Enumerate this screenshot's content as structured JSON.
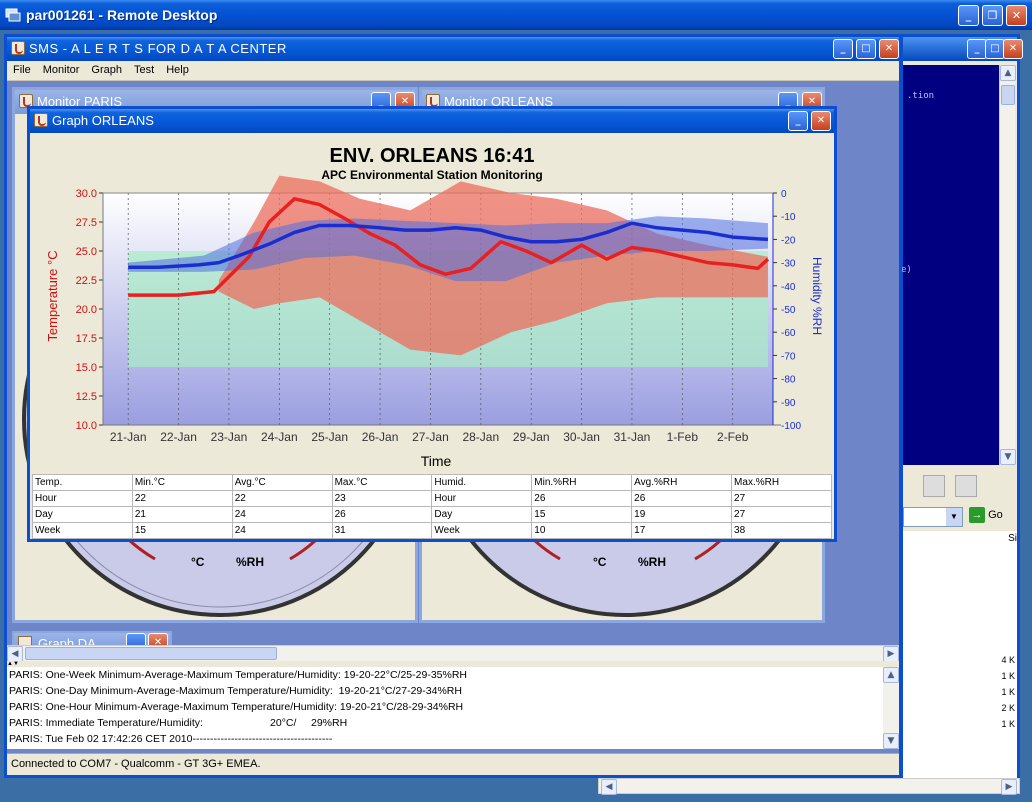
{
  "remote_title": "par001261 - Remote Desktop",
  "app": {
    "title": "SMS - A L E R T S  FOR  D A T A CENTER",
    "menu": [
      "File",
      "Monitor",
      "Graph",
      "Test",
      "Help"
    ]
  },
  "windows": {
    "monitor_paris": "Monitor PARIS",
    "monitor_orleans": "Monitor ORLEANS",
    "graph_da": "Graph DA",
    "graph_orleans": "Graph ORLEANS"
  },
  "gauges": {
    "left": {
      "scale_min": "-5.0",
      "scale_max": "45.0",
      "unit_c": "°C",
      "unit_rh": "%RH"
    },
    "right": {
      "scale_min": "-5.0",
      "scale_max": "45.0",
      "unit_c": "°C",
      "unit_rh": "%RH"
    }
  },
  "chart_data": {
    "type": "line",
    "title": "ENV. ORLEANS 16:41",
    "subtitle": "APC Environmental Station Monitoring",
    "xlabel": "Time",
    "ylabel": "Temperature °C",
    "y2label": "Humidity %RH",
    "categories": [
      "21-Jan",
      "22-Jan",
      "23-Jan",
      "24-Jan",
      "25-Jan",
      "26-Jan",
      "27-Jan",
      "28-Jan",
      "29-Jan",
      "30-Jan",
      "31-Jan",
      "1-Feb",
      "2-Feb"
    ],
    "y_ticks": [
      "30.0",
      "27.5",
      "25.0",
      "22.5",
      "20.0",
      "17.5",
      "15.0",
      "12.5",
      "10.0"
    ],
    "y2_ticks": [
      "0",
      "-10",
      "-20",
      "-30",
      "-40",
      "-50",
      "-60",
      "-70",
      "-80",
      "-90",
      "-100"
    ],
    "ylim": [
      10,
      30
    ],
    "y2lim": [
      -100,
      0
    ],
    "series": [
      {
        "name": "",
        "color": "#e82020",
        "axis": "left",
        "x": [
          21.0,
          22.0,
          22.7,
          23.4,
          23.8,
          24.3,
          24.8,
          25.3,
          25.8,
          26.3,
          26.8,
          27.3,
          27.8,
          28.4,
          28.9,
          29.4,
          30.0,
          30.5,
          31.0,
          31.5,
          32.0,
          32.5,
          33.0,
          33.5,
          33.7
        ],
        "values": [
          21.2,
          21.2,
          21.5,
          24.5,
          27.5,
          29.5,
          29.0,
          27.8,
          26.5,
          25.5,
          23.8,
          23.0,
          23.5,
          25.8,
          25.0,
          24.0,
          25.5,
          24.3,
          25.3,
          25.0,
          24.5,
          24.0,
          23.8,
          23.5,
          24.3
        ]
      },
      {
        "name": "",
        "color": "#1a2ed0",
        "axis": "right",
        "x": [
          21.0,
          21.6,
          22.4,
          22.8,
          23.2,
          23.8,
          24.3,
          24.8,
          25.4,
          26.0,
          26.5,
          27.0,
          27.5,
          28.0,
          28.5,
          29.0,
          29.5,
          30.0,
          30.5,
          31.0,
          31.5,
          32.0,
          32.5,
          33.0,
          33.7
        ],
        "values": [
          -32,
          -32,
          -31,
          -30,
          -27,
          -22,
          -17,
          -14,
          -14,
          -15,
          -16,
          -16,
          -15,
          -16,
          -19,
          -21,
          -21,
          -20,
          -17,
          -13,
          -15,
          -16,
          -17,
          -19,
          -20
        ]
      }
    ],
    "bands": [
      {
        "name": "",
        "color": "#ec6d5e",
        "axis": "left",
        "x": [
          22.8,
          23.5,
          24.0,
          24.8,
          25.6,
          26.6,
          27.6,
          28.6,
          29.5,
          30.5,
          31.5,
          32.5,
          33.7
        ],
        "upper": [
          22.5,
          27.5,
          31.5,
          31.0,
          29.5,
          28.5,
          31.0,
          30.0,
          29.5,
          28.5,
          26.5,
          25.5,
          24.5
        ],
        "lower": [
          21.5,
          20.0,
          20.5,
          21.0,
          19.0,
          16.5,
          16.0,
          18.0,
          19.0,
          20.5,
          21.0,
          21.0,
          21.0
        ]
      },
      {
        "name": "",
        "color": "#5070e0",
        "axis": "right",
        "x": [
          21.0,
          22.5,
          23.5,
          24.5,
          25.5,
          26.5,
          27.5,
          28.5,
          29.5,
          30.5,
          31.5,
          32.5,
          33.7
        ],
        "upper": [
          -30,
          -27,
          -17,
          -12,
          -11,
          -12,
          -13,
          -14,
          -13,
          -13,
          -10,
          -11,
          -13
        ],
        "lower": [
          -34,
          -34,
          -33,
          -28,
          -27,
          -31,
          -38,
          -38,
          -30,
          -27,
          -25,
          -25,
          -24
        ]
      }
    ],
    "comfort_zone_temp": [
      15,
      25
    ],
    "grid": true
  },
  "stats": {
    "headers_temp": [
      "Temp.",
      "Min.°C",
      "Avg.°C",
      "Max.°C"
    ],
    "headers_hum": [
      "Humid.",
      "Min.%RH",
      "Avg.%RH",
      "Max.%RH"
    ],
    "rows": [
      {
        "label": "Hour",
        "tmin": "22",
        "tavg": "22",
        "tmax": "23",
        "hlabel": "Hour",
        "hmin": "26",
        "havg": "26",
        "hmax": "27"
      },
      {
        "label": "Day",
        "tmin": "21",
        "tavg": "24",
        "tmax": "26",
        "hlabel": "Day",
        "hmin": "15",
        "havg": "19",
        "hmax": "27"
      },
      {
        "label": "Week",
        "tmin": "15",
        "tavg": "24",
        "tmax": "31",
        "hlabel": "Week",
        "hmin": "10",
        "havg": "17",
        "hmax": "38"
      }
    ]
  },
  "log": [
    "PARIS: One-Week Minimum-Average-Maximum Temperature/Humidity: 19-20-22°C/25-29-35%RH",
    "PARIS: One-Day Minimum-Average-Maximum Temperature/Humidity:  19-20-21°C/27-29-34%RH",
    "PARIS: One-Hour Minimum-Average-Maximum Temperature/Humidity: 19-20-21°C/28-29-34%RH",
    "PARIS: Immediate Temperature/Humidity:                       20°C/     29%RH",
    "PARIS: Tue Feb 02 17:42:26 CET 2010----------------------------------------"
  ],
  "status": "Connected to COM7 - Qualcomm - GT 3G+ EMEA.",
  "background_window": {
    "code_lines": [
      ".tion",
      "e)"
    ],
    "go_label": "Go",
    "col_label": "Si",
    "sizes": [
      "4 K",
      "1 K",
      "1 K",
      "2 K",
      "1 K"
    ]
  }
}
